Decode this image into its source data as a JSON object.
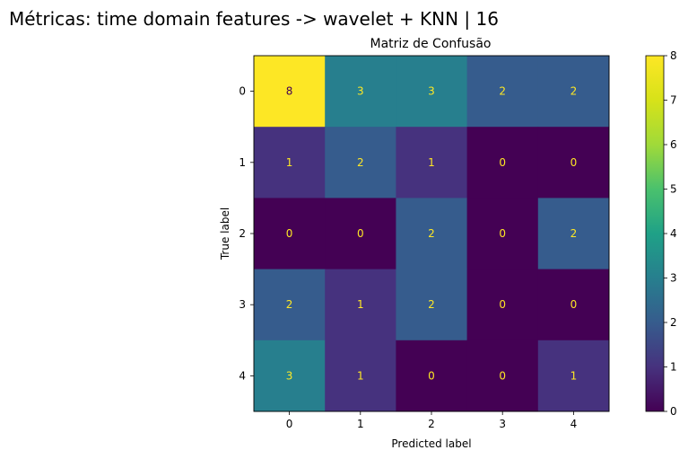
{
  "figure": {
    "suptitle": "Métricas: time domain features -> wavelet + KNN | 16"
  },
  "chart_data": {
    "type": "heatmap",
    "title": "Matriz de Confusão",
    "xlabel": "Predicted label",
    "ylabel": "True label",
    "x_categories": [
      "0",
      "1",
      "2",
      "3",
      "4"
    ],
    "y_categories": [
      "0",
      "1",
      "2",
      "3",
      "4"
    ],
    "matrix": [
      [
        8,
        3,
        3,
        2,
        2
      ],
      [
        1,
        2,
        1,
        0,
        0
      ],
      [
        0,
        0,
        2,
        0,
        2
      ],
      [
        2,
        1,
        2,
        0,
        0
      ],
      [
        3,
        1,
        0,
        0,
        1
      ]
    ],
    "colormap": "viridis",
    "colorbar": {
      "range": [
        0,
        8
      ],
      "ticks": [
        "0",
        "1",
        "2",
        "3",
        "4",
        "5",
        "6",
        "7",
        "8"
      ]
    },
    "grid": false
  }
}
